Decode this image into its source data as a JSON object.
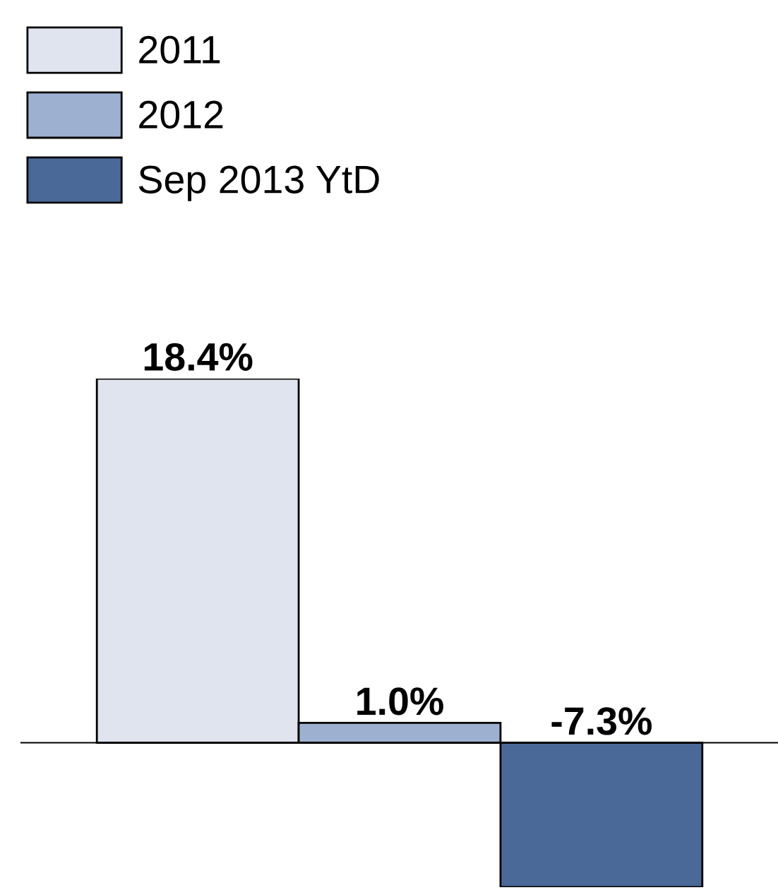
{
  "chart_data": {
    "type": "bar",
    "categories": [
      null
    ],
    "series": [
      {
        "name": "2011",
        "color": "#dfe4ee",
        "values": [
          18.4
        ],
        "value_labels": [
          "18.4%"
        ]
      },
      {
        "name": "2012",
        "color": "#9eb0d0",
        "values": [
          1.0
        ],
        "value_labels": [
          "1.0%"
        ]
      },
      {
        "name": "Sep 2013 YtD",
        "color": "#4a6898",
        "values": [
          -7.3
        ],
        "value_labels": [
          "-7.3%"
        ]
      }
    ],
    "legend": "top left",
    "grid": false
  }
}
